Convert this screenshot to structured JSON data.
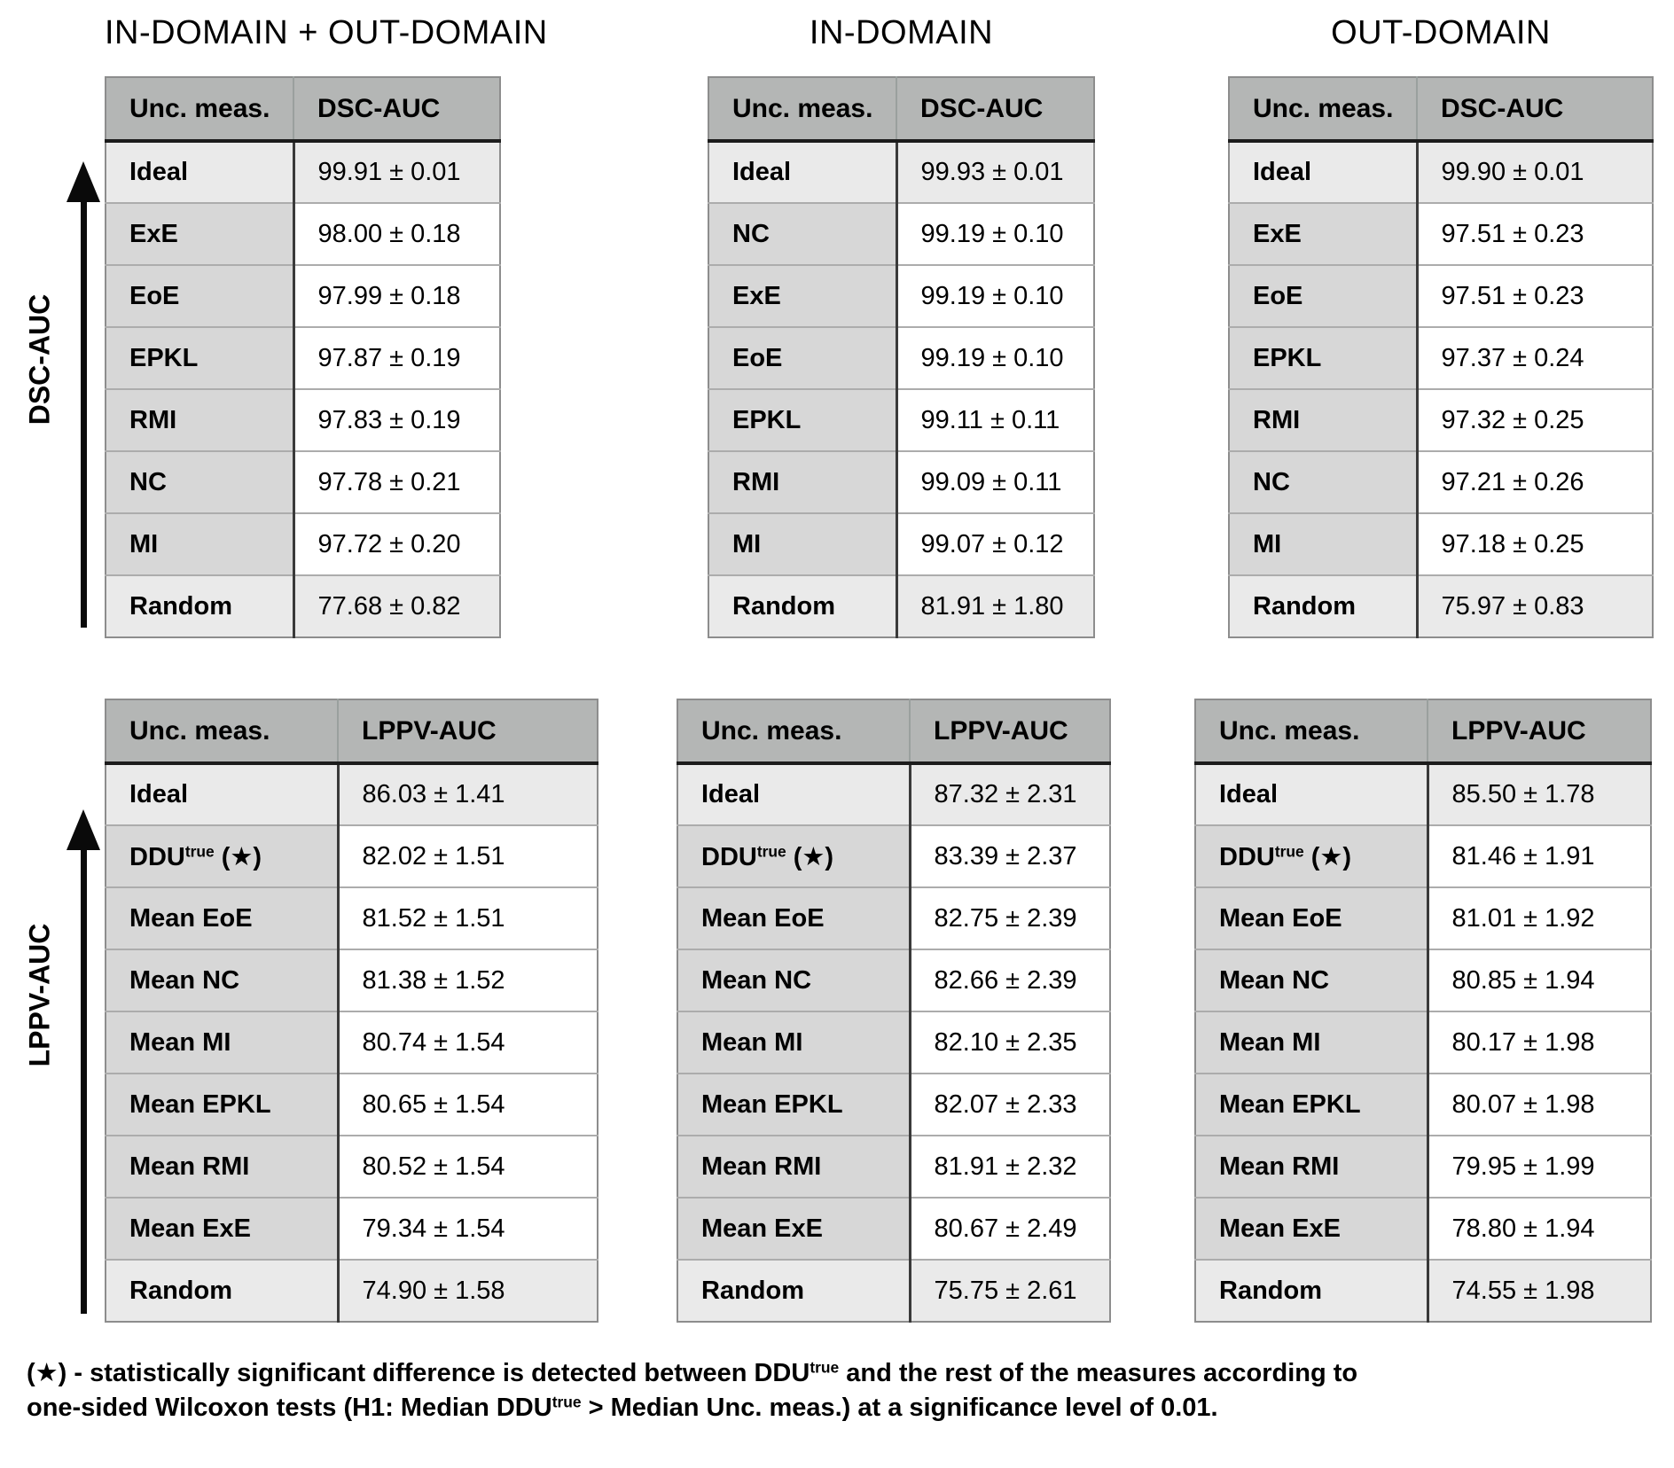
{
  "figure": {
    "column_titles": [
      "IN-DOMAIN + OUT-DOMAIN",
      "IN-DOMAIN",
      "OUT-DOMAIN"
    ],
    "axis_labels": {
      "top": "DSC-AUC",
      "bottom": "LPPV-AUC"
    },
    "header_label": "Unc. meas.",
    "colors": {
      "header_bg": "#b4b6b5",
      "label_col_bg": "#d7d7d7",
      "highlight_row_bg": "#eaeaea",
      "value_col_bg": "#ffffff"
    },
    "footnote": {
      "p1": "(★) - statistically significant difference is detected between DDU",
      "sup1": "true",
      "p2": " and the rest of the measures according to",
      "p3": "one-sided Wilcoxon tests (H1: Median DDU",
      "sup2": "true",
      "p4": " > Median Unc. meas.) at a significance level of 0.01."
    }
  },
  "tables": {
    "dsc_inout": {
      "metric": "DSC-AUC",
      "rows": [
        {
          "label": "Ideal",
          "value": "99.91 ± 0.01"
        },
        {
          "label": "ExE",
          "value": "98.00 ± 0.18"
        },
        {
          "label": "EoE",
          "value": "97.99 ± 0.18"
        },
        {
          "label": "EPKL",
          "value": "97.87 ± 0.19"
        },
        {
          "label": "RMI",
          "value": "97.83 ± 0.19"
        },
        {
          "label": "NC",
          "value": "97.78 ± 0.21"
        },
        {
          "label": "MI",
          "value": "97.72 ± 0.20"
        },
        {
          "label": "Random",
          "value": "77.68 ± 0.82"
        }
      ]
    },
    "dsc_in": {
      "metric": "DSC-AUC",
      "rows": [
        {
          "label": "Ideal",
          "value": "99.93 ± 0.01"
        },
        {
          "label": "NC",
          "value": "99.19 ± 0.10"
        },
        {
          "label": "ExE",
          "value": "99.19 ± 0.10"
        },
        {
          "label": "EoE",
          "value": "99.19 ± 0.10"
        },
        {
          "label": "EPKL",
          "value": "99.11 ± 0.11"
        },
        {
          "label": "RMI",
          "value": "99.09 ± 0.11"
        },
        {
          "label": "MI",
          "value": "99.07 ± 0.12"
        },
        {
          "label": "Random",
          "value": "81.91 ± 1.80"
        }
      ]
    },
    "dsc_out": {
      "metric": "DSC-AUC",
      "rows": [
        {
          "label": "Ideal",
          "value": "99.90 ± 0.01"
        },
        {
          "label": "ExE",
          "value": "97.51 ± 0.23"
        },
        {
          "label": "EoE",
          "value": "97.51 ± 0.23"
        },
        {
          "label": "EPKL",
          "value": "97.37 ± 0.24"
        },
        {
          "label": "RMI",
          "value": "97.32 ± 0.25"
        },
        {
          "label": "NC",
          "value": "97.21 ± 0.26"
        },
        {
          "label": "MI",
          "value": "97.18 ± 0.25"
        },
        {
          "label": "Random",
          "value": "75.97 ± 0.83"
        }
      ]
    },
    "lppv_inout": {
      "metric": "LPPV-AUC",
      "rows": [
        {
          "label": "Ideal",
          "value": "86.03 ± 1.41"
        },
        {
          "label_base": "DDU",
          "label_sup": "true",
          "label_star": " (★)",
          "value": "82.02 ± 1.51"
        },
        {
          "label": "Mean EoE",
          "value": "81.52 ± 1.51"
        },
        {
          "label": "Mean NC",
          "value": "81.38 ± 1.52"
        },
        {
          "label": "Mean MI",
          "value": "80.74 ± 1.54"
        },
        {
          "label": "Mean EPKL",
          "value": "80.65 ± 1.54"
        },
        {
          "label": "Mean RMI",
          "value": "80.52 ± 1.54"
        },
        {
          "label": "Mean ExE",
          "value": "79.34 ± 1.54"
        },
        {
          "label": "Random",
          "value": "74.90 ± 1.58"
        }
      ]
    },
    "lppv_in": {
      "metric": "LPPV-AUC",
      "rows": [
        {
          "label": "Ideal",
          "value": "87.32 ± 2.31"
        },
        {
          "label_base": "DDU",
          "label_sup": "true",
          "label_star": " (★)",
          "value": "83.39 ± 2.37"
        },
        {
          "label": "Mean EoE",
          "value": "82.75 ± 2.39"
        },
        {
          "label": "Mean NC",
          "value": "82.66 ± 2.39"
        },
        {
          "label": "Mean MI",
          "value": "82.10 ± 2.35"
        },
        {
          "label": "Mean EPKL",
          "value": "82.07 ± 2.33"
        },
        {
          "label": "Mean RMI",
          "value": "81.91 ± 2.32"
        },
        {
          "label": "Mean ExE",
          "value": "80.67 ± 2.49"
        },
        {
          "label": "Random",
          "value": "75.75 ± 2.61"
        }
      ]
    },
    "lppv_out": {
      "metric": "LPPV-AUC",
      "rows": [
        {
          "label": "Ideal",
          "value": "85.50 ± 1.78"
        },
        {
          "label_base": "DDU",
          "label_sup": "true",
          "label_star": " (★)",
          "value": "81.46 ± 1.91"
        },
        {
          "label": "Mean EoE",
          "value": "81.01 ± 1.92"
        },
        {
          "label": "Mean NC",
          "value": "80.85 ± 1.94"
        },
        {
          "label": "Mean MI",
          "value": "80.17 ± 1.98"
        },
        {
          "label": "Mean EPKL",
          "value": "80.07 ± 1.98"
        },
        {
          "label": "Mean RMI",
          "value": "79.95 ± 1.99"
        },
        {
          "label": "Mean ExE",
          "value": "78.80 ± 1.94"
        },
        {
          "label": "Random",
          "value": "74.55 ± 1.98"
        }
      ]
    }
  }
}
